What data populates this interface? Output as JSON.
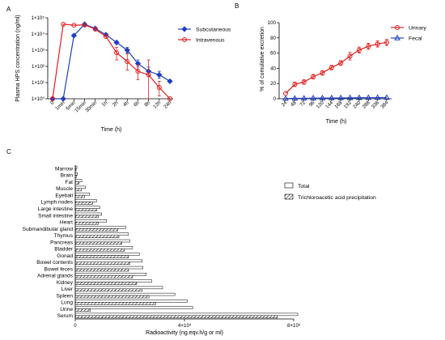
{
  "panels": {
    "a": "A",
    "b": "B",
    "c": "C"
  },
  "chart_data": [
    {
      "type": "line",
      "ylabel": "Plasma HPS concentration (ng/ml)",
      "xlabel": "Time (h)",
      "yscale": "log",
      "ylim": [
        1,
        100000
      ],
      "yticks": [
        "1×10⁰",
        "1×10¹",
        "1×10²",
        "1×10³",
        "1×10⁴",
        "1×10⁵"
      ],
      "categories": [
        "0",
        "1min",
        "5min",
        "15min",
        "30min",
        "1h",
        "2h",
        "4h",
        "6h",
        "8h",
        "12h",
        "24h"
      ],
      "legend_position": "top-right",
      "series": [
        {
          "name": "Subcutaneous",
          "color": "#1f3fbf",
          "marker": "diamond",
          "values": [
            1,
            1,
            8000,
            40000,
            22000,
            9000,
            3000,
            1000,
            150,
            50,
            30,
            12
          ],
          "err_hi": [
            null,
            null,
            null,
            null,
            null,
            null,
            null,
            1500,
            250,
            90,
            50,
            null
          ],
          "err_lo": [
            null,
            null,
            null,
            null,
            null,
            null,
            null,
            650,
            90,
            30,
            18,
            null
          ]
        },
        {
          "name": "Intravenous",
          "color": "#e02020",
          "marker": "circle",
          "values": [
            1,
            40000,
            35000,
            36000,
            20000,
            7000,
            700,
            200,
            50,
            30,
            5,
            1
          ],
          "err_hi": [
            null,
            null,
            null,
            null,
            null,
            null,
            1500,
            600,
            120,
            250,
            12,
            null
          ],
          "err_lo": [
            null,
            null,
            null,
            null,
            null,
            null,
            250,
            60,
            15,
            1,
            1.5,
            null
          ]
        }
      ]
    },
    {
      "type": "line",
      "ylabel": "% of cumulative excretion",
      "xlabel": "Time (h)",
      "ylim": [
        0,
        100
      ],
      "yticks": [
        "0",
        "20",
        "40",
        "60",
        "80",
        "100"
      ],
      "categories": [
        "24",
        "48",
        "72",
        "96",
        "120",
        "144",
        "168",
        "192",
        "240",
        "288",
        "336",
        "384"
      ],
      "legend_position": "top-right",
      "series": [
        {
          "name": "Urinary",
          "color": "#e02020",
          "marker": "circle",
          "values": [
            7,
            19,
            22,
            29,
            34,
            41,
            47,
            56,
            64,
            69,
            72,
            74
          ],
          "err": [
            0,
            3,
            3,
            3,
            3,
            3,
            3,
            5,
            4,
            4,
            4,
            4
          ]
        },
        {
          "name": "Fecal",
          "color": "#1f3fbf",
          "marker": "triangle",
          "values": [
            0.3,
            0.5,
            0.6,
            0.8,
            0.9,
            1.0,
            1.1,
            1.2,
            1.3,
            1.4,
            1.5,
            1.5
          ],
          "err": [
            0,
            0,
            0,
            0,
            0,
            0,
            0,
            0,
            0,
            0,
            0,
            0
          ]
        }
      ]
    },
    {
      "type": "bar",
      "orientation": "horizontal",
      "xlabel": "Radioactivity (ng.eqv.h/g or ml)",
      "xlim": [
        0,
        8000
      ],
      "xticks": [
        "0",
        "4×10³",
        "8×10³"
      ],
      "legend_position": "top-right",
      "categories": [
        "Marrow",
        "Brain",
        "Fat",
        "Muscle",
        "Eyeball",
        "Lymph nodes",
        "Large intestine",
        "Small intestine",
        "Heart",
        "Submandibular gland",
        "Thymus",
        "Pancreas",
        "Bladder",
        "Gonad",
        "Bowel contents",
        "Bowel feces",
        "Adrenal glands",
        "Kidney",
        "Liver",
        "Spleen",
        "Lung",
        "Urine",
        "Serum"
      ],
      "series": [
        {
          "name": "Total",
          "pattern": "open",
          "values": [
            60,
            80,
            240,
            380,
            520,
            780,
            900,
            970,
            1150,
            1850,
            1950,
            2000,
            2100,
            2350,
            2450,
            2480,
            2600,
            2800,
            3200,
            3650,
            4100,
            4300,
            8150
          ]
        },
        {
          "name": "Trichloroacetic acid precipitation",
          "pattern": "hatched",
          "values": [
            30,
            50,
            140,
            220,
            340,
            630,
            780,
            850,
            850,
            1550,
            1600,
            1700,
            1800,
            1950,
            2000,
            1950,
            2100,
            2250,
            2450,
            2700,
            2950,
            550,
            7400
          ]
        }
      ]
    }
  ]
}
